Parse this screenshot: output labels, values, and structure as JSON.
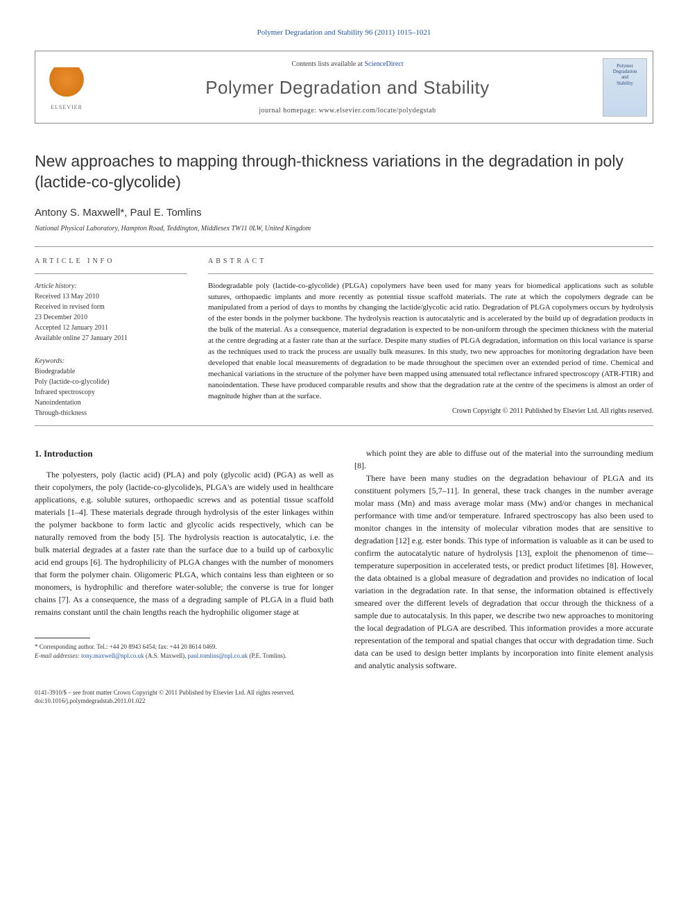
{
  "running_head": "Polymer Degradation and Stability 96 (2011) 1015–1021",
  "banner": {
    "contents_prefix": "Contents lists available at ",
    "contents_link": "ScienceDirect",
    "journal_name": "Polymer Degradation and Stability",
    "homepage_prefix": "journal homepage: ",
    "homepage_url": "www.elsevier.com/locate/polydegstab",
    "publisher": "ELSEVIER",
    "cover_line1": "Polymer",
    "cover_line2": "Degradation",
    "cover_line3": "and",
    "cover_line4": "Stability"
  },
  "title": "New approaches to mapping through-thickness variations in the degradation in poly (lactide-co-glycolide)",
  "authors": "Antony S. Maxwell*, Paul E. Tomlins",
  "affiliation": "National Physical Laboratory, Hampton Road, Teddington, Middlesex TW11 0LW, United Kingdom",
  "labels": {
    "article_info": "ARTICLE INFO",
    "abstract": "ABSTRACT"
  },
  "history": {
    "head": "Article history:",
    "received": "Received 13 May 2010",
    "revised": "Received in revised form",
    "revised_date": "23 December 2010",
    "accepted": "Accepted 12 January 2011",
    "online": "Available online 27 January 2011"
  },
  "keywords": {
    "head": "Keywords:",
    "items": [
      "Biodegradable",
      "Poly (lactide-co-glycolide)",
      "Infrared spectroscopy",
      "Nanoindentation",
      "Through-thickness"
    ]
  },
  "abstract": "Biodegradable poly (lactide-co-glycolide) (PLGA) copolymers have been used for many years for biomedical applications such as soluble sutures, orthopaedic implants and more recently as potential tissue scaffold materials. The rate at which the copolymers degrade can be manipulated from a period of days to months by changing the lactide/glycolic acid ratio. Degradation of PLGA copolymers occurs by hydrolysis of the ester bonds in the polymer backbone. The hydrolysis reaction is autocatalytic and is accelerated by the build up of degradation products in the bulk of the material. As a consequence, material degradation is expected to be non-uniform through the specimen thickness with the material at the centre degrading at a faster rate than at the surface. Despite many studies of PLGA degradation, information on this local variance is sparse as the techniques used to track the process are usually bulk measures. In this study, two new approaches for monitoring degradation have been developed that enable local measurements of degradation to be made throughout the specimen over an extended period of time. Chemical and mechanical variations in the structure of the polymer have been mapped using attenuated total reflectance infrared spectroscopy (ATR-FTIR) and nanoindentation. These have produced comparable results and show that the degradation rate at the centre of the specimens is almost an order of magnitude higher than at the surface.",
  "copyright": "Crown Copyright © 2011 Published by Elsevier Ltd. All rights reserved.",
  "section1_head": "1. Introduction",
  "col_left_p1": "The polyesters, poly (lactic acid) (PLA) and poly (glycolic acid) (PGA) as well as their copolymers, the poly (lactide-co-glycolide)s, PLGA's are widely used in healthcare applications, e.g. soluble sutures, orthopaedic screws and as potential tissue scaffold materials [1–4]. These materials degrade through hydrolysis of the ester linkages within the polymer backbone to form lactic and glycolic acids respectively, which can be naturally removed from the body [5]. The hydrolysis reaction is autocatalytic, i.e. the bulk material degrades at a faster rate than the surface due to a build up of carboxylic acid end groups [6]. The hydrophilicity of PLGA changes with the number of monomers that form the polymer chain. Oligomeric PLGA, which contains less than eighteen or so monomers, is hydrophilic and therefore water-soluble; the converse is true for longer chains [7]. As a consequence, the mass of a degrading sample of PLGA in a fluid bath remains constant until the chain lengths reach the hydrophilic oligomer stage at",
  "col_right_p1": "which point they are able to diffuse out of the material into the surrounding medium [8].",
  "col_right_p2": "There have been many studies on the degradation behaviour of PLGA and its constituent polymers [5,7–11]. In general, these track changes in the number average molar mass (Mn) and mass average molar mass (Mw) and/or changes in mechanical performance with time and/or temperature. Infrared spectroscopy has also been used to monitor changes in the intensity of molecular vibration modes that are sensitive to degradation [12] e.g. ester bonds. This type of information is valuable as it can be used to confirm the autocatalytic nature of hydrolysis [13], exploit the phenomenon of time-–temperature superposition in accelerated tests, or predict product lifetimes [8]. However, the data obtained is a global measure of degradation and provides no indication of local variation in the degradation rate. In that sense, the information obtained is effectively smeared over the different levels of degradation that occur through the thickness of a sample due to autocatalysis. In this paper, we describe two new approaches to monitoring the local degradation of PLGA are described. This information provides a more accurate representation of the temporal and spatial changes that occur with degradation time. Such data can be used to design better implants by incorporation into finite element analysis and analytic analysis software.",
  "footnotes": {
    "corr": "* Corresponding author. Tel.: +44 20 8943 6454; fax: +44 20 8614 0469.",
    "email_label": "E-mail addresses:",
    "email1": "tony.maxwell@npl.co.uk",
    "email1_who": "(A.S. Maxwell),",
    "email2": "paul.tomlins@npl.co.uk",
    "email2_who": "(P.E. Tomlins)."
  },
  "bottom": {
    "issn": "0141-3910/$ – see front matter Crown Copyright © 2011 Published by Elsevier Ltd. All rights reserved.",
    "doi": "doi:10.1016/j.polymdegradstab.2011.01.022"
  },
  "colors": {
    "link": "#2255aa",
    "text": "#222222",
    "rule": "#999999",
    "publisher_orange": "#eb8b2d"
  }
}
